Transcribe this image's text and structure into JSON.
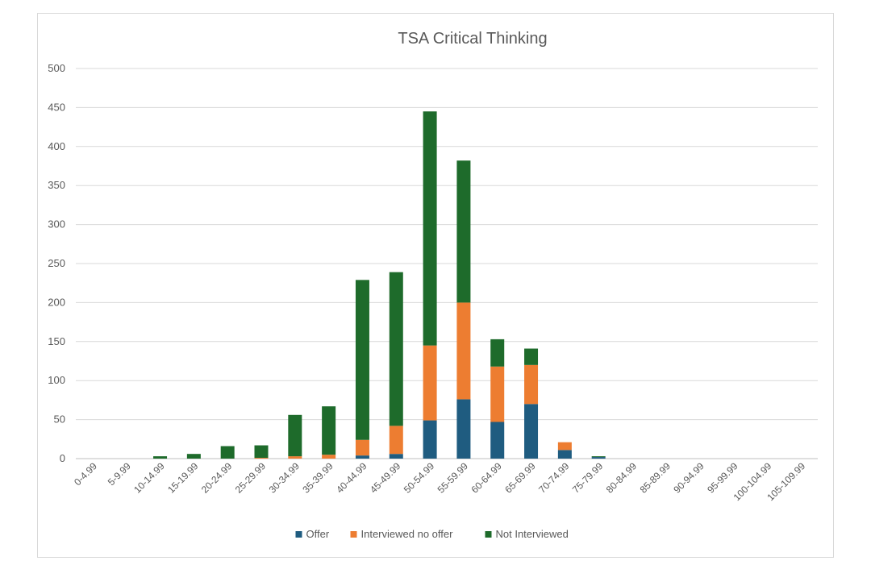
{
  "chart_data": {
    "type": "bar",
    "stacked": true,
    "title": "TSA Critical Thinking",
    "xlabel": "",
    "ylabel": "",
    "ylim": [
      0,
      500
    ],
    "yticks": [
      "0",
      "50",
      "100",
      "150",
      "200",
      "250",
      "300",
      "350",
      "400",
      "450",
      "500"
    ],
    "grid": true,
    "legend_position": "bottom",
    "categories": [
      "0-4.99",
      "5-9.99",
      "10-14.99",
      "15-19.99",
      "20-24.99",
      "25-29.99",
      "30-34.99",
      "35-39.99",
      "40-44.99",
      "45-49.99",
      "50-54.99",
      "55-59.99",
      "60-64.99",
      "65-69.99",
      "70-74.99",
      "75-79.99",
      "80-84.99",
      "85-89.99",
      "90-94.99",
      "95-99.99",
      "100-104.99",
      "105-109.99"
    ],
    "series": [
      {
        "name": "Offer",
        "color": "#1f5c80",
        "values": [
          0,
          0,
          0,
          0,
          0,
          0,
          0,
          0,
          4,
          6,
          49,
          76,
          47,
          70,
          11,
          2,
          0,
          0,
          0,
          0,
          0,
          0
        ]
      },
      {
        "name": "Interviewed no offer",
        "color": "#ed7d31",
        "values": [
          0,
          0,
          0,
          0,
          0,
          1,
          3,
          5,
          20,
          36,
          96,
          124,
          71,
          50,
          10,
          0,
          0,
          0,
          0,
          0,
          0,
          0
        ]
      },
      {
        "name": "Not Interviewed",
        "color": "#1e6b2b",
        "values": [
          0,
          0,
          3,
          6,
          16,
          16,
          53,
          62,
          205,
          197,
          300,
          182,
          35,
          21,
          0,
          1,
          0,
          0,
          0,
          0,
          0,
          0
        ]
      }
    ]
  }
}
